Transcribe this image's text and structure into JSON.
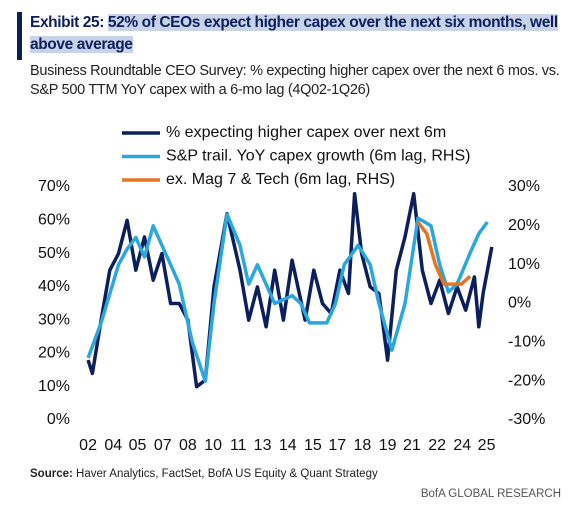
{
  "chart_data": {
    "type": "line",
    "title_label": "Exhibit 25:",
    "title": "52% of CEOs expect higher capex over the next six months, well above average",
    "subtitle": "Business Roundtable CEO Survey: % expecting higher capex over the next 6 mos. vs. S&P 500 TTM YoY capex with a 6-mo lag (4Q02-1Q26)",
    "source_label": "Source:",
    "source": "Haver Analytics, FactSet, BofA US Equity & Quant Strategy",
    "footer": "BofA GLOBAL RESEARCH",
    "xlim": [
      2002.4,
      2026.3
    ],
    "xticks": [
      {
        "value": 2002.75,
        "label": "02"
      },
      {
        "value": 2004.2,
        "label": "04"
      },
      {
        "value": 2005.6,
        "label": "05"
      },
      {
        "value": 2007.05,
        "label": "07"
      },
      {
        "value": 2008.5,
        "label": "08"
      },
      {
        "value": 2009.95,
        "label": "10"
      },
      {
        "value": 2011.4,
        "label": "11"
      },
      {
        "value": 2012.8,
        "label": "13"
      },
      {
        "value": 2014.25,
        "label": "14"
      },
      {
        "value": 2015.7,
        "label": "15"
      },
      {
        "value": 2017.1,
        "label": "17"
      },
      {
        "value": 2018.55,
        "label": "18"
      },
      {
        "value": 2020.0,
        "label": "19"
      },
      {
        "value": 2021.4,
        "label": "21"
      },
      {
        "value": 2022.85,
        "label": "22"
      },
      {
        "value": 2024.3,
        "label": "24"
      },
      {
        "value": 2025.7,
        "label": "25"
      }
    ],
    "ylim": [
      0,
      70
    ],
    "yticks": [
      {
        "value": 0,
        "label": "0%"
      },
      {
        "value": 10,
        "label": "10%"
      },
      {
        "value": 20,
        "label": "20%"
      },
      {
        "value": 30,
        "label": "30%"
      },
      {
        "value": 40,
        "label": "40%"
      },
      {
        "value": 50,
        "label": "50%"
      },
      {
        "value": 60,
        "label": "60%"
      },
      {
        "value": 70,
        "label": "70%"
      }
    ],
    "y2lim": [
      -30,
      30
    ],
    "y2ticks": [
      {
        "value": -30,
        "label": "-30%"
      },
      {
        "value": -20,
        "label": "-20%"
      },
      {
        "value": -10,
        "label": "-10%"
      },
      {
        "value": 0,
        "label": "0%"
      },
      {
        "value": 10,
        "label": "10%"
      },
      {
        "value": 20,
        "label": "20%"
      },
      {
        "value": 30,
        "label": "30%"
      }
    ],
    "series": [
      {
        "name": "% expecting higher capex over next 6m",
        "color": "#0b1f5e",
        "x": [
          2002.75,
          2003.0,
          2003.5,
          2004.0,
          2004.5,
          2005.0,
          2005.5,
          2006.0,
          2006.5,
          2007.0,
          2007.5,
          2008.0,
          2008.5,
          2009.0,
          2009.5,
          2010.0,
          2010.75,
          2011.5,
          2012.0,
          2012.5,
          2013.0,
          2013.5,
          2014.0,
          2014.5,
          2015.25,
          2015.75,
          2016.25,
          2016.75,
          2017.25,
          2017.75,
          2018.1,
          2018.5,
          2019.0,
          2019.5,
          2020.0,
          2020.5,
          2021.0,
          2021.5,
          2022.0,
          2022.5,
          2023.0,
          2023.5,
          2024.0,
          2024.5,
          2025.0,
          2025.25,
          2025.5,
          2026.0
        ],
        "values": [
          18,
          14,
          30,
          45,
          50,
          60,
          45,
          55,
          42,
          50,
          35,
          35,
          30,
          10,
          12,
          40,
          62,
          45,
          30,
          40,
          28,
          45,
          30,
          48,
          30,
          45,
          35,
          32,
          45,
          38,
          68,
          50,
          40,
          38,
          18,
          45,
          55,
          68,
          45,
          35,
          42,
          32,
          40,
          33,
          43,
          28,
          38,
          52
        ]
      },
      {
        "name": "S&P trail. YoY capex growth (6m lag, RHS)",
        "color": "#2aa7df",
        "axis": "y2",
        "x": [
          2002.75,
          2003.5,
          2004.5,
          2005.0,
          2005.5,
          2006.0,
          2006.5,
          2007.5,
          2008.0,
          2008.75,
          2009.5,
          2010.0,
          2010.75,
          2011.5,
          2012.0,
          2012.5,
          2013.5,
          2014.5,
          2015.0,
          2015.5,
          2016.5,
          2017.0,
          2017.5,
          2018.3,
          2019.0,
          2019.5,
          2020.25,
          2021.0,
          2021.75,
          2022.5,
          2023.0,
          2023.5,
          2024.0,
          2024.75,
          2025.25,
          2025.75
        ],
        "values": [
          -14,
          -5,
          10,
          14,
          17,
          12,
          20,
          10,
          5,
          -10,
          -20,
          0,
          23,
          15,
          5,
          10,
          0,
          2,
          0,
          -5,
          -5,
          0,
          10,
          15,
          10,
          0,
          -12,
          0,
          22,
          20,
          10,
          3,
          5,
          13,
          18,
          21
        ]
      },
      {
        "name": "ex. Mag 7 & Tech (6m lag, RHS)",
        "color": "#e8731e",
        "axis": "y2",
        "x": [
          2021.75,
          2022.25,
          2022.75,
          2023.25,
          2023.75,
          2024.25,
          2024.75
        ],
        "values": [
          21,
          18,
          10,
          5,
          5,
          5,
          7
        ]
      }
    ]
  }
}
